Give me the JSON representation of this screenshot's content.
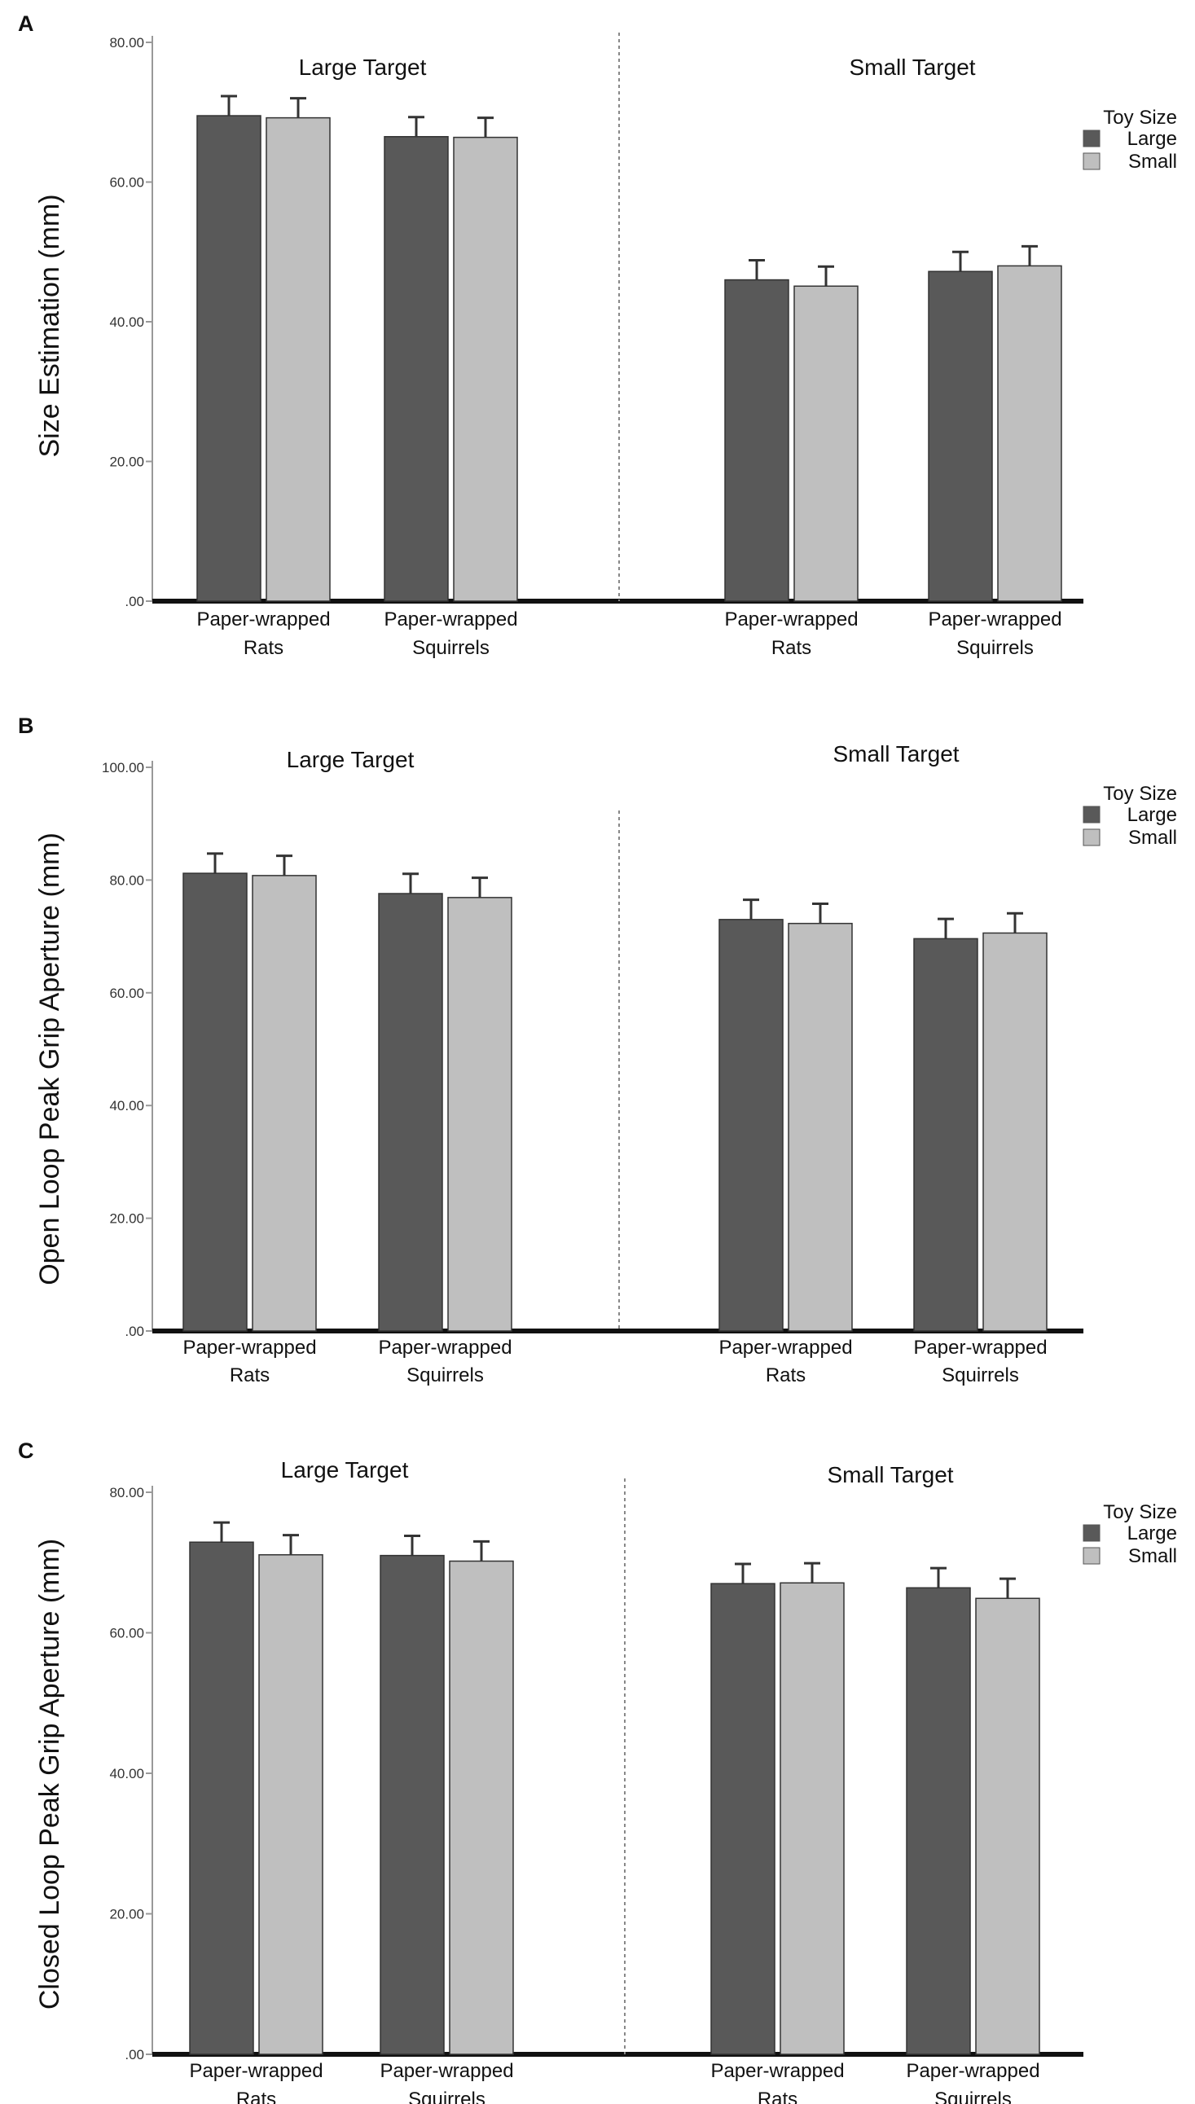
{
  "legend": {
    "title": "Toy Size",
    "items": [
      {
        "label": "Large",
        "color": "#595959"
      },
      {
        "label": "Small",
        "color": "#bfbfbf"
      }
    ]
  },
  "chart_data": [
    {
      "panel_label": "A",
      "type": "bar",
      "ylabel": "Size Estimation (mm)",
      "ylim": [
        0,
        80
      ],
      "yticks": [
        0,
        20,
        40,
        60,
        80
      ],
      "ytick_labels": [
        ".00",
        "20.00",
        "40.00",
        "60.00",
        "80.00"
      ],
      "groups": [
        {
          "title": "Large Target",
          "categories": [
            {
              "line1": "Paper-wrapped",
              "line2": "Rats"
            },
            {
              "line1": "Paper-wrapped",
              "line2": "Squirrels"
            }
          ],
          "series": [
            {
              "name": "Large",
              "values": [
                69.5,
                66.5
              ],
              "errors": [
                2.8,
                2.8
              ]
            },
            {
              "name": "Small",
              "values": [
                69.2,
                66.4
              ],
              "errors": [
                2.8,
                2.8
              ]
            }
          ]
        },
        {
          "title": "Small Target",
          "categories": [
            {
              "line1": "Paper-wrapped",
              "line2": "Rats"
            },
            {
              "line1": "Paper-wrapped",
              "line2": "Squirrels"
            }
          ],
          "series": [
            {
              "name": "Large",
              "values": [
                46.0,
                47.2
              ],
              "errors": [
                2.8,
                2.8
              ]
            },
            {
              "name": "Small",
              "values": [
                45.1,
                48.0
              ],
              "errors": [
                2.8,
                2.8
              ]
            }
          ]
        }
      ]
    },
    {
      "panel_label": "B",
      "type": "bar",
      "ylabel": "Open Loop Peak Grip Aperture (mm)",
      "ylim": [
        0,
        100
      ],
      "yticks": [
        0,
        20,
        40,
        60,
        80,
        100
      ],
      "ytick_labels": [
        ".00",
        "20.00",
        "40.00",
        "60.00",
        "80.00",
        "100.00"
      ],
      "groups": [
        {
          "title": "Large Target",
          "categories": [
            {
              "line1": "Paper-wrapped",
              "line2": "Rats"
            },
            {
              "line1": "Paper-wrapped",
              "line2": "Squirrels"
            }
          ],
          "series": [
            {
              "name": "Large",
              "values": [
                81.2,
                77.6
              ],
              "errors": [
                3.5,
                3.5
              ]
            },
            {
              "name": "Small",
              "values": [
                80.8,
                76.9
              ],
              "errors": [
                3.5,
                3.5
              ]
            }
          ]
        },
        {
          "title": "Small Target",
          "categories": [
            {
              "line1": "Paper-wrapped",
              "line2": "Rats"
            },
            {
              "line1": "Paper-wrapped",
              "line2": "Squirrels"
            }
          ],
          "series": [
            {
              "name": "Large",
              "values": [
                73.0,
                69.6
              ],
              "errors": [
                3.5,
                3.5
              ]
            },
            {
              "name": "Small",
              "values": [
                72.3,
                70.6
              ],
              "errors": [
                3.5,
                3.5
              ]
            }
          ]
        }
      ]
    },
    {
      "panel_label": "C",
      "type": "bar",
      "ylabel": "Closed Loop Peak Grip Aperture (mm)",
      "ylim": [
        0,
        80
      ],
      "yticks": [
        0,
        20,
        40,
        60,
        80
      ],
      "ytick_labels": [
        ".00",
        "20.00",
        "40.00",
        "60.00",
        "80.00"
      ],
      "groups": [
        {
          "title": "Large Target",
          "categories": [
            {
              "line1": "Paper-wrapped",
              "line2": "Rats"
            },
            {
              "line1": "Paper-wrapped",
              "line2": "Squirrels"
            }
          ],
          "series": [
            {
              "name": "Large",
              "values": [
                72.9,
                71.0
              ],
              "errors": [
                2.8,
                2.8
              ]
            },
            {
              "name": "Small",
              "values": [
                71.1,
                70.2
              ],
              "errors": [
                2.8,
                2.8
              ]
            }
          ]
        },
        {
          "title": "Small Target",
          "categories": [
            {
              "line1": "Paper-wrapped",
              "line2": "Rats"
            },
            {
              "line1": "Paper-wrapped",
              "line2": "Squirrels"
            }
          ],
          "series": [
            {
              "name": "Large",
              "values": [
                67.0,
                66.4
              ],
              "errors": [
                2.8,
                2.8
              ]
            },
            {
              "name": "Small",
              "values": [
                67.1,
                64.9
              ],
              "errors": [
                2.8,
                2.8
              ]
            }
          ]
        }
      ]
    }
  ]
}
